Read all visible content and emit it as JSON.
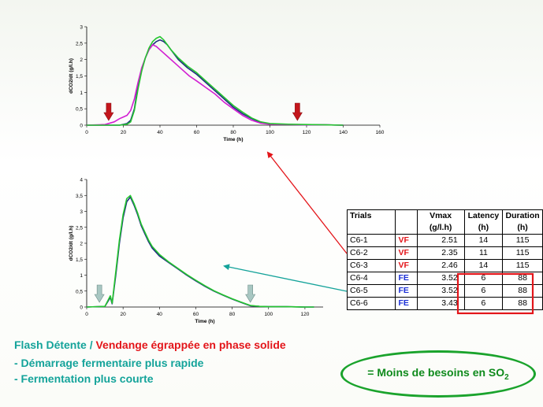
{
  "chart_data": [
    {
      "type": "line",
      "ylabel": "dCO2/dt (g/l.h)",
      "xlabel": "Time (h)",
      "xlim": [
        0,
        160
      ],
      "ylim": [
        0,
        3
      ],
      "xticks": [
        0,
        20,
        40,
        60,
        80,
        100,
        120,
        140,
        160
      ],
      "yticks": [
        0,
        0.5,
        1,
        1.5,
        2,
        2.5,
        3
      ],
      "ytick_labels": [
        "0",
        "0,5",
        "1",
        "1,5",
        "2",
        "2,5",
        "3"
      ],
      "series": [
        {
          "color": "#1e2a80",
          "x": [
            0,
            18,
            22,
            24,
            26,
            28,
            30,
            32,
            34,
            36,
            38,
            40,
            42,
            44,
            46,
            50,
            55,
            60,
            65,
            70,
            75,
            80,
            85,
            90,
            95,
            100,
            110,
            120,
            130,
            140
          ],
          "y": [
            0,
            0,
            0.05,
            0.15,
            0.5,
            1.2,
            1.7,
            2.05,
            2.3,
            2.45,
            2.55,
            2.6,
            2.55,
            2.45,
            2.3,
            2.0,
            1.75,
            1.55,
            1.3,
            1.05,
            0.8,
            0.55,
            0.35,
            0.2,
            0.08,
            0.04,
            0.02,
            0.01,
            0.01,
            0
          ]
        },
        {
          "color": "#d21fd2",
          "x": [
            0,
            10,
            15,
            18,
            20,
            22,
            24,
            26,
            28,
            30,
            32,
            34,
            36,
            38,
            40,
            44,
            48,
            52,
            56,
            60,
            65,
            70,
            75,
            80,
            85,
            90,
            95,
            100,
            110,
            120,
            130,
            140
          ],
          "y": [
            0,
            0.02,
            0.1,
            0.2,
            0.25,
            0.3,
            0.45,
            0.8,
            1.3,
            1.75,
            2.05,
            2.3,
            2.45,
            2.4,
            2.3,
            2.1,
            1.9,
            1.7,
            1.5,
            1.35,
            1.15,
            0.95,
            0.7,
            0.5,
            0.3,
            0.15,
            0.06,
            0.03,
            0.02,
            0.01,
            0.01,
            0
          ]
        },
        {
          "color": "#25c62f",
          "x": [
            0,
            18,
            22,
            24,
            26,
            28,
            30,
            32,
            34,
            36,
            38,
            40,
            42,
            44,
            46,
            50,
            55,
            60,
            65,
            70,
            75,
            80,
            85,
            90,
            95,
            100,
            110,
            120,
            130,
            140
          ],
          "y": [
            0,
            0,
            0.03,
            0.1,
            0.45,
            1.1,
            1.65,
            2.05,
            2.35,
            2.55,
            2.65,
            2.7,
            2.6,
            2.45,
            2.3,
            2.05,
            1.8,
            1.6,
            1.35,
            1.1,
            0.85,
            0.6,
            0.4,
            0.22,
            0.1,
            0.05,
            0.03,
            0.02,
            0.01,
            0
          ]
        }
      ],
      "markers": [
        {
          "x": 12,
          "style": "red-arrow"
        },
        {
          "x": 115,
          "style": "red-arrow"
        }
      ]
    },
    {
      "type": "line",
      "ylabel": "dCO2/dt (g/l.h)",
      "xlabel": "Time (h)",
      "xlim": [
        0,
        130
      ],
      "ylim": [
        0,
        4
      ],
      "xticks": [
        0,
        20,
        40,
        60,
        80,
        100,
        120
      ],
      "yticks": [
        0,
        0.5,
        1,
        1.5,
        2,
        2.5,
        3,
        3.5,
        4
      ],
      "ytick_labels": [
        "0",
        "0,5",
        "1",
        "1,5",
        "2",
        "2,5",
        "3",
        "3,5",
        "4"
      ],
      "series": [
        {
          "color": "#1e2a80",
          "x": [
            0,
            10,
            13,
            14,
            16,
            18,
            20,
            22,
            24,
            26,
            28,
            30,
            32,
            34,
            36,
            40,
            45,
            50,
            55,
            60,
            65,
            70,
            75,
            80,
            85,
            88,
            90,
            95,
            100,
            110,
            120,
            125
          ],
          "y": [
            0,
            0.02,
            0.3,
            0.1,
            1.0,
            2.0,
            2.8,
            3.3,
            3.45,
            3.2,
            2.9,
            2.55,
            2.3,
            2.05,
            1.85,
            1.6,
            1.4,
            1.2,
            1.0,
            0.82,
            0.65,
            0.5,
            0.37,
            0.25,
            0.14,
            0.08,
            0.04,
            0.02,
            0.01,
            0.01,
            0,
            0
          ]
        },
        {
          "color": "#25c62f",
          "x": [
            0,
            10,
            13,
            14,
            16,
            18,
            20,
            22,
            24,
            26,
            28,
            30,
            32,
            34,
            36,
            40,
            45,
            50,
            55,
            60,
            65,
            70,
            75,
            80,
            85,
            88,
            90,
            95,
            100,
            110,
            120,
            125
          ],
          "y": [
            0,
            0.02,
            0.35,
            0.12,
            1.1,
            2.1,
            2.9,
            3.4,
            3.5,
            3.25,
            2.95,
            2.6,
            2.35,
            2.1,
            1.9,
            1.65,
            1.42,
            1.22,
            1.02,
            0.84,
            0.67,
            0.51,
            0.38,
            0.26,
            0.15,
            0.09,
            0.05,
            0.02,
            0.01,
            0.01,
            0,
            0
          ]
        }
      ],
      "markers": [
        {
          "x": 7,
          "style": "grey-arrow"
        },
        {
          "x": 90,
          "style": "grey-arrow"
        }
      ]
    }
  ],
  "table": {
    "headers": [
      "Trials",
      "",
      "Vmax (g/l.h)",
      "Latency (h)",
      "Duration (h)"
    ],
    "rows": [
      {
        "trial": "C6-1",
        "cond": "VF",
        "vmax": "2.51",
        "latency": "14",
        "duration": "115"
      },
      {
        "trial": "C6-2",
        "cond": "VF",
        "vmax": "2.35",
        "latency": "11",
        "duration": "115"
      },
      {
        "trial": "C6-3",
        "cond": "VF",
        "vmax": "2.46",
        "latency": "14",
        "duration": "115"
      },
      {
        "trial": "C6-4",
        "cond": "FE",
        "vmax": "3.52",
        "latency": "6",
        "duration": "88"
      },
      {
        "trial": "C6-5",
        "cond": "FE",
        "vmax": "3.52",
        "latency": "6",
        "duration": "88"
      },
      {
        "trial": "C6-6",
        "cond": "FE",
        "vmax": "3.43",
        "latency": "6",
        "duration": "88"
      }
    ]
  },
  "captions": {
    "line1_teal": "Flash Détente / ",
    "line1_red": "Vendange égrappée en phase solide",
    "line2": "- Démarrage fermentaire plus rapide",
    "line3": "- Fermentation plus courte"
  },
  "summary": {
    "text": "= Moins de besoins en SO",
    "sub": "2"
  },
  "colors": {
    "vf": "#e3151a",
    "fe": "#1a2fd6",
    "teal": "#14a39a",
    "green": "#1aa32c",
    "highlight": "#e3151a"
  }
}
